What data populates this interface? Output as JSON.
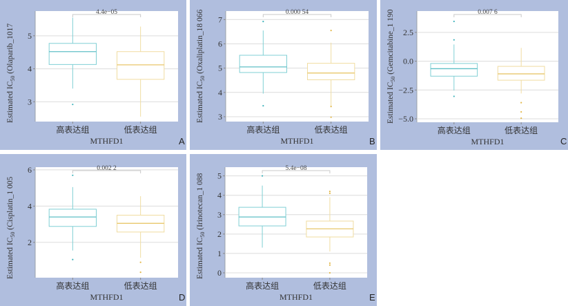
{
  "colors": {
    "panel_bg": "#b0bede",
    "high_group": "#7fcfd4",
    "high_median": "#5fbfc6",
    "low_group": "#f0dca0",
    "low_median": "#e8c66a",
    "high_point": "#3fb3bb",
    "low_point": "#e2b84a"
  },
  "chart_data": [
    {
      "panel": "A",
      "type": "box",
      "title": "",
      "xlabel": "MTHFD1",
      "ylabel_prefix": "Estimated IC",
      "ylabel_sub": "50",
      "ylabel_suffix": " (Olaparib_1017",
      "categories": [
        "高表达组",
        "低表达组"
      ],
      "yticks": [
        3,
        4,
        5
      ],
      "ytick_labels": [
        "3",
        "4",
        "5"
      ],
      "ylim": [
        2.4,
        5.75
      ],
      "p_value": "4.4e−05",
      "grid": true,
      "series": [
        {
          "name": "高表达组",
          "whisker_low": 3.4,
          "q1": 4.13,
          "median": 4.52,
          "q3": 4.77,
          "whisker_high": 5.55,
          "outliers": [
            2.92
          ]
        },
        {
          "name": "低表达组",
          "whisker_low": 2.55,
          "q1": 3.68,
          "median": 4.12,
          "q3": 4.52,
          "whisker_high": 5.28,
          "outliers": []
        }
      ]
    },
    {
      "panel": "B",
      "type": "box",
      "title": "",
      "xlabel": "MTHFD1",
      "ylabel_prefix": "Estimated IC",
      "ylabel_sub": "50",
      "ylabel_suffix": " (Oxaliplatin_18 066",
      "categories": [
        "高表达组",
        "低表达组"
      ],
      "yticks": [
        3,
        4,
        5,
        6,
        7
      ],
      "ytick_labels": [
        "3",
        "4",
        "5",
        "6",
        "7"
      ],
      "ylim": [
        2.8,
        7.35
      ],
      "p_value": "0.000 54",
      "grid": true,
      "series": [
        {
          "name": "高表达组",
          "whisker_low": 3.95,
          "q1": 4.82,
          "median": 5.05,
          "q3": 5.53,
          "whisker_high": 6.55,
          "outliers": [
            6.92,
            3.45
          ]
        },
        {
          "name": "低表达组",
          "whisker_low": 3.42,
          "q1": 4.52,
          "median": 4.8,
          "q3": 5.2,
          "whisker_high": 6.05,
          "outliers": [
            6.55,
            3.42,
            2.98
          ]
        }
      ]
    },
    {
      "panel": "C",
      "type": "box",
      "title": "",
      "xlabel": "MTHFD1",
      "ylabel_prefix": "Estimated IC",
      "ylabel_sub": "50",
      "ylabel_suffix": " (Gemcitabine_1 190",
      "categories": [
        "高表达组",
        "低表达组"
      ],
      "yticks": [
        -5.0,
        -2.5,
        0.0,
        2.5
      ],
      "ytick_labels": [
        "−5.0",
        "−2.5",
        "0.0",
        "2.5"
      ],
      "ylim": [
        -5.3,
        4.35
      ],
      "p_value": "0.007 6",
      "grid": true,
      "series": [
        {
          "name": "高表达组",
          "whisker_low": -2.55,
          "q1": -1.3,
          "median": -0.65,
          "q3": -0.2,
          "whisker_high": 1.45,
          "outliers": [
            3.45,
            1.85,
            -3.05
          ]
        },
        {
          "name": "低表达组",
          "whisker_low": -2.8,
          "q1": -1.65,
          "median": -1.1,
          "q3": -0.45,
          "whisker_high": 1.15,
          "outliers": [
            -3.6,
            -4.4,
            -4.95
          ]
        }
      ]
    },
    {
      "panel": "D",
      "type": "box",
      "title": "",
      "xlabel": "MTHFD1",
      "ylabel_prefix": "Estimated IC",
      "ylabel_sub": "50",
      "ylabel_suffix": " (Cisplatin_1 005",
      "categories": [
        "高表达组",
        "低表达组"
      ],
      "yticks": [
        2,
        4,
        6
      ],
      "ytick_labels": [
        "2",
        "4",
        "6"
      ],
      "ylim": [
        0.05,
        6.15
      ],
      "p_value": "0.002 2",
      "grid": true,
      "series": [
        {
          "name": "高表达组",
          "whisker_low": 1.55,
          "q1": 2.88,
          "median": 3.4,
          "q3": 3.83,
          "whisker_high": 5.05,
          "outliers": [
            5.7,
            1.05
          ]
        },
        {
          "name": "低表达组",
          "whisker_low": 1.15,
          "q1": 2.57,
          "median": 3.05,
          "q3": 3.5,
          "whisker_high": 4.55,
          "outliers": [
            0.9,
            0.35
          ]
        }
      ]
    },
    {
      "panel": "E",
      "type": "box",
      "title": "",
      "xlabel": "MTHFD1",
      "ylabel_prefix": "Estimated IC",
      "ylabel_sub": "50",
      "ylabel_suffix": " (Irinotecan_1 088",
      "categories": [
        "高表达组",
        "低表达组"
      ],
      "yticks": [
        0,
        1,
        2,
        3,
        4,
        5
      ],
      "ytick_labels": [
        "0",
        "1",
        "2",
        "3",
        "4",
        "5"
      ],
      "ylim": [
        -0.25,
        5.45
      ],
      "p_value": "5.4e−08",
      "grid": true,
      "series": [
        {
          "name": "高表达组",
          "whisker_low": 1.3,
          "q1": 2.42,
          "median": 2.88,
          "q3": 3.38,
          "whisker_high": 4.5,
          "outliers": [
            5.0
          ]
        },
        {
          "name": "低表达组",
          "whisker_low": 1.1,
          "q1": 1.85,
          "median": 2.27,
          "q3": 2.67,
          "whisker_high": 3.9,
          "outliers": [
            4.2,
            4.1,
            0.5,
            0.4,
            0.0
          ]
        }
      ]
    }
  ]
}
